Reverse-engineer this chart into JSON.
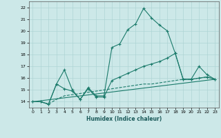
{
  "xlabel": "Humidex (Indice chaleur)",
  "bg_color": "#cce8e8",
  "grid_color": "#aed4d4",
  "line_color": "#1a7a6a",
  "xlim": [
    -0.5,
    23.5
  ],
  "ylim": [
    13.5,
    22.5
  ],
  "yticks": [
    14,
    15,
    16,
    17,
    18,
    19,
    20,
    21,
    22
  ],
  "xticks": [
    0,
    1,
    2,
    3,
    4,
    5,
    6,
    7,
    8,
    9,
    10,
    11,
    12,
    13,
    14,
    15,
    16,
    17,
    18,
    19,
    20,
    21,
    22,
    23
  ],
  "line1_x": [
    0,
    1,
    2,
    3,
    4,
    5,
    6,
    7,
    8,
    9,
    10,
    11,
    12,
    13,
    14,
    15,
    16,
    17,
    18,
    19,
    20,
    21,
    22,
    23
  ],
  "line1_y": [
    14.0,
    14.0,
    13.8,
    15.5,
    16.7,
    15.0,
    14.2,
    15.2,
    14.5,
    14.5,
    18.6,
    18.9,
    20.1,
    20.6,
    21.9,
    21.1,
    20.5,
    20.0,
    18.1,
    15.9,
    15.9,
    17.0,
    16.3,
    15.9
  ],
  "line2_x": [
    0,
    1,
    2,
    3,
    4,
    5,
    6,
    7,
    8,
    9,
    10,
    11,
    12,
    13,
    14,
    15,
    16,
    17,
    18,
    19,
    20,
    21,
    22,
    23
  ],
  "line2_y": [
    14.0,
    14.0,
    13.8,
    15.5,
    15.1,
    14.9,
    14.2,
    15.1,
    14.4,
    14.4,
    15.8,
    16.1,
    16.4,
    16.7,
    17.0,
    17.2,
    17.4,
    17.7,
    18.1,
    15.9,
    15.9,
    16.0,
    16.1,
    15.9
  ],
  "line3_x": [
    0,
    1,
    2,
    3,
    4,
    5,
    6,
    7,
    8,
    9,
    10,
    11,
    12,
    13,
    14,
    15,
    16,
    17,
    18,
    19,
    20,
    21,
    22,
    23
  ],
  "line3_y": [
    14.0,
    14.0,
    13.8,
    14.2,
    14.5,
    14.6,
    14.7,
    14.8,
    14.9,
    15.0,
    15.1,
    15.2,
    15.3,
    15.4,
    15.5,
    15.5,
    15.6,
    15.7,
    15.8,
    15.9,
    15.9,
    16.0,
    16.1,
    15.9
  ],
  "line4_x": [
    0,
    23
  ],
  "line4_y": [
    14.0,
    15.9
  ]
}
